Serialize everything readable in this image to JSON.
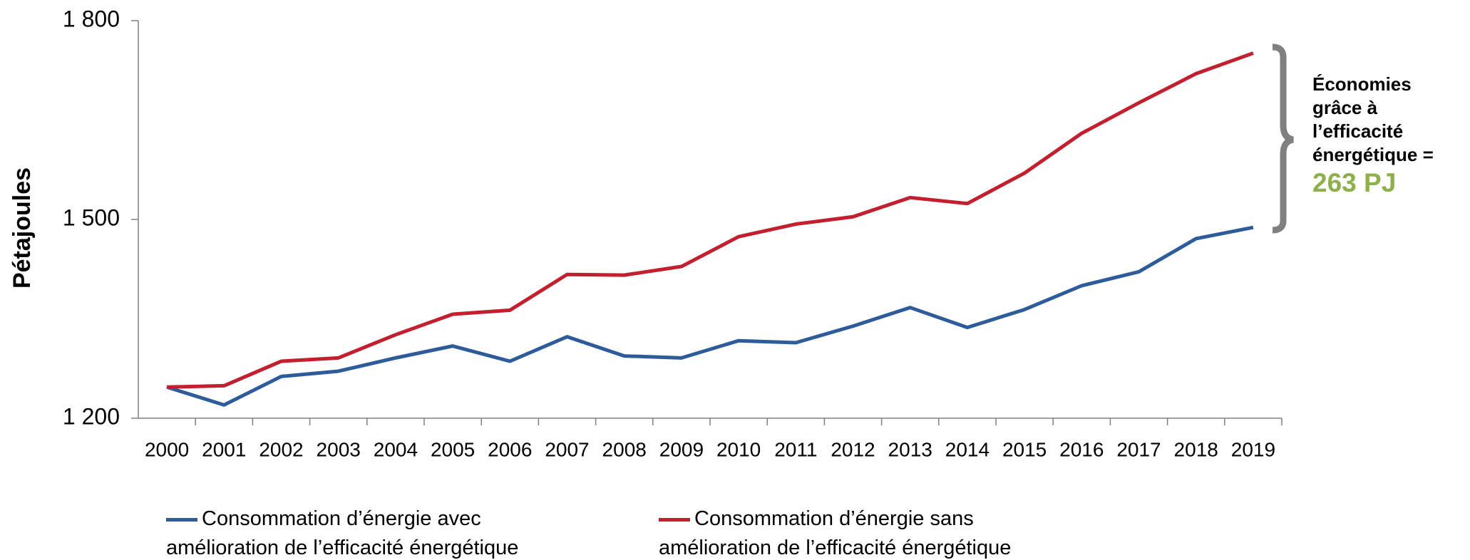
{
  "chart_data": {
    "type": "line",
    "y_label": "Pétajoules",
    "categories": [
      "2000",
      "2001",
      "2002",
      "2003",
      "2004",
      "2005",
      "2006",
      "2007",
      "2008",
      "2009",
      "2010",
      "2011",
      "2012",
      "2013",
      "2014",
      "2015",
      "2016",
      "2017",
      "2018",
      "2019"
    ],
    "series": [
      {
        "name": "Consommation d’énergie avec amélioration de l’efficacité énergétique",
        "color": "#2e5c9a",
        "values": [
          1247,
          1220,
          1263,
          1271,
          1291,
          1309,
          1286,
          1323,
          1294,
          1291,
          1317,
          1314,
          1339,
          1367,
          1337,
          1364,
          1400,
          1421,
          1471,
          1488
        ]
      },
      {
        "name": "Consommation d’énergie sans amélioration de l’efficacité énergétique",
        "color": "#c3202f",
        "values": [
          1247,
          1249,
          1286,
          1291,
          1326,
          1357,
          1363,
          1417,
          1416,
          1429,
          1474,
          1493,
          1504,
          1533,
          1524,
          1570,
          1630,
          1676,
          1720,
          1751
        ]
      }
    ],
    "ylim": [
      1200,
      1800
    ],
    "yticks": [
      {
        "value": 1200,
        "label": "1 200"
      },
      {
        "value": 1500,
        "label": "1 500"
      },
      {
        "value": 1800,
        "label": "1 800"
      }
    ],
    "grid": false,
    "annotation": {
      "text": "Économies grâce à l’efficacité énergétique =",
      "value_text": "263 PJ",
      "value_color": "#8db04a"
    }
  }
}
